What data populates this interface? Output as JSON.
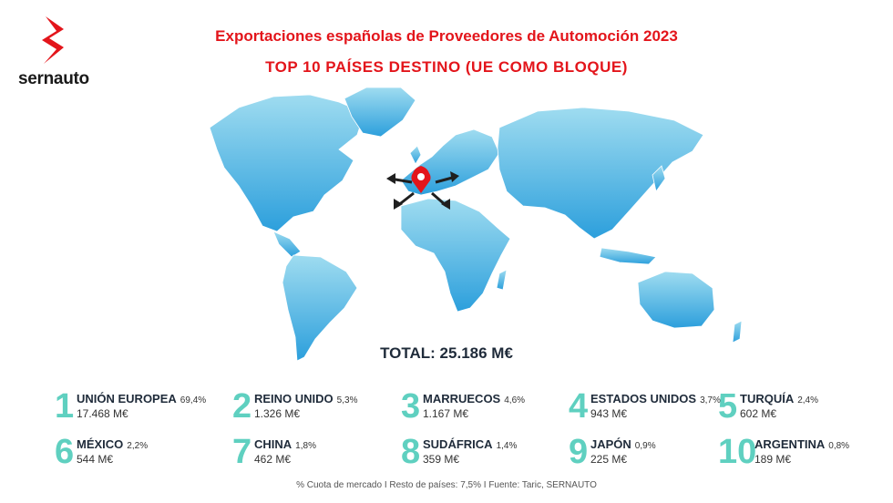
{
  "brand": {
    "name": "sernauto",
    "logo_icon": "sernauto-s-logo-icon",
    "accent": "#e3151b"
  },
  "title": "Exportaciones españolas de Proveedores de Automoción 2023",
  "subtitle": "TOP 10 PAÍSES DESTINO (UE COMO BLOQUE)",
  "map": {
    "marker_icon": "location-pin-icon",
    "arrows_icon": "outward-arrows-icon",
    "land_color": "#4db8e2"
  },
  "total": "TOTAL: 25.186 M€",
  "ranking": [
    {
      "rank": "1",
      "name": "UNIÓN EUROPEA",
      "share": "69,4%",
      "value": "17.468 M€"
    },
    {
      "rank": "2",
      "name": "REINO UNIDO",
      "share": "5,3%",
      "value": "1.326 M€"
    },
    {
      "rank": "3",
      "name": "MARRUECOS",
      "share": "4,6%",
      "value": "1.167 M€"
    },
    {
      "rank": "4",
      "name": "ESTADOS UNIDOS",
      "share": "3,7%",
      "value": "943 M€"
    },
    {
      "rank": "5",
      "name": "TURQUÍA",
      "share": "2,4%",
      "value": "602 M€"
    },
    {
      "rank": "6",
      "name": "MÉXICO",
      "share": "2,2%",
      "value": "544 M€"
    },
    {
      "rank": "7",
      "name": "CHINA",
      "share": "1,8%",
      "value": "462 M€"
    },
    {
      "rank": "8",
      "name": "SUDÁFRICA",
      "share": "1,4%",
      "value": "359 M€"
    },
    {
      "rank": "9",
      "name": "JAPÓN",
      "share": "0,9%",
      "value": "225 M€"
    },
    {
      "rank": "10",
      "name": "ARGENTINA",
      "share": "0,8%",
      "value": "189 M€"
    }
  ],
  "footnote": "% Cuota de mercado I Resto de países: 7,5% I  Fuente: Taric, SERNAUTO"
}
